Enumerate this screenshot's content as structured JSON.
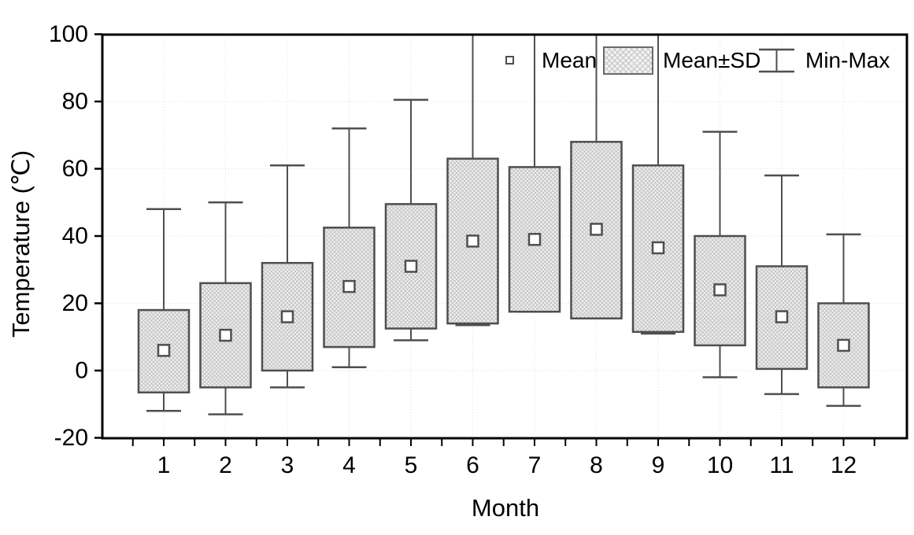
{
  "chart_data": {
    "type": "box",
    "title": "",
    "xlabel": "Month",
    "ylabel": "Temperature (℃)",
    "ylim": [
      -20,
      100
    ],
    "y_ticks": [
      -20,
      0,
      20,
      40,
      60,
      80,
      100
    ],
    "grid_y_values": [
      0,
      20,
      40,
      60,
      80
    ],
    "categories": [
      "1",
      "2",
      "3",
      "4",
      "5",
      "6",
      "7",
      "8",
      "9",
      "10",
      "11",
      "12"
    ],
    "grid": "dotted light-gray horizontal every 20 units and vertical at each month",
    "legend": {
      "position": "inside-top-right",
      "items": [
        {
          "label": "Mean",
          "marker": "open-square"
        },
        {
          "label": "Mean±SD",
          "marker": "hatched-box"
        },
        {
          "label": "Min-Max",
          "marker": "whisker"
        }
      ]
    },
    "series": [
      {
        "month": 1,
        "mean": 6,
        "mean_minus_sd": -6.5,
        "mean_plus_sd": 18,
        "min": -12,
        "max": 48,
        "max_clipped": false
      },
      {
        "month": 2,
        "mean": 10.5,
        "mean_minus_sd": -5,
        "mean_plus_sd": 26,
        "min": -13,
        "max": 50,
        "max_clipped": false
      },
      {
        "month": 3,
        "mean": 16,
        "mean_minus_sd": 0,
        "mean_plus_sd": 32,
        "min": -5,
        "max": 61,
        "max_clipped": false
      },
      {
        "month": 4,
        "mean": 25,
        "mean_minus_sd": 7,
        "mean_plus_sd": 42.5,
        "min": 1,
        "max": 72,
        "max_clipped": false
      },
      {
        "month": 5,
        "mean": 31,
        "mean_minus_sd": 12.5,
        "mean_plus_sd": 49.5,
        "min": 9,
        "max": 80.5,
        "max_clipped": false
      },
      {
        "month": 6,
        "mean": 38.5,
        "mean_minus_sd": 14,
        "mean_plus_sd": 63,
        "min": 13.5,
        "max": 100,
        "max_clipped": true
      },
      {
        "month": 7,
        "mean": 39,
        "mean_minus_sd": 17.5,
        "mean_plus_sd": 60.5,
        "min": 17.5,
        "max": 100,
        "max_clipped": true
      },
      {
        "month": 8,
        "mean": 42,
        "mean_minus_sd": 15.5,
        "mean_plus_sd": 68,
        "min": 15.5,
        "max": 100,
        "max_clipped": true
      },
      {
        "month": 9,
        "mean": 36.5,
        "mean_minus_sd": 11.5,
        "mean_plus_sd": 61,
        "min": 11,
        "max": 100,
        "max_clipped": true
      },
      {
        "month": 10,
        "mean": 24,
        "mean_minus_sd": 7.5,
        "mean_plus_sd": 40,
        "min": -2,
        "max": 71,
        "max_clipped": false
      },
      {
        "month": 11,
        "mean": 16,
        "mean_minus_sd": 0.5,
        "mean_plus_sd": 31,
        "min": -7,
        "max": 58,
        "max_clipped": false
      },
      {
        "month": 12,
        "mean": 7.5,
        "mean_minus_sd": -5,
        "mean_plus_sd": 20,
        "min": -10.5,
        "max": 40.5,
        "max_clipped": false
      }
    ]
  },
  "colors": {
    "background": "#ffffff",
    "axis": "#000000",
    "box_border": "#4f4f4f",
    "whisker": "#4f4f4f",
    "box_fill_base": "#f1f1f1",
    "box_hatch": "#c3c3c3",
    "gridline": "#dedede",
    "mean_marker_fill": "#ffffff",
    "text": "#000000"
  }
}
